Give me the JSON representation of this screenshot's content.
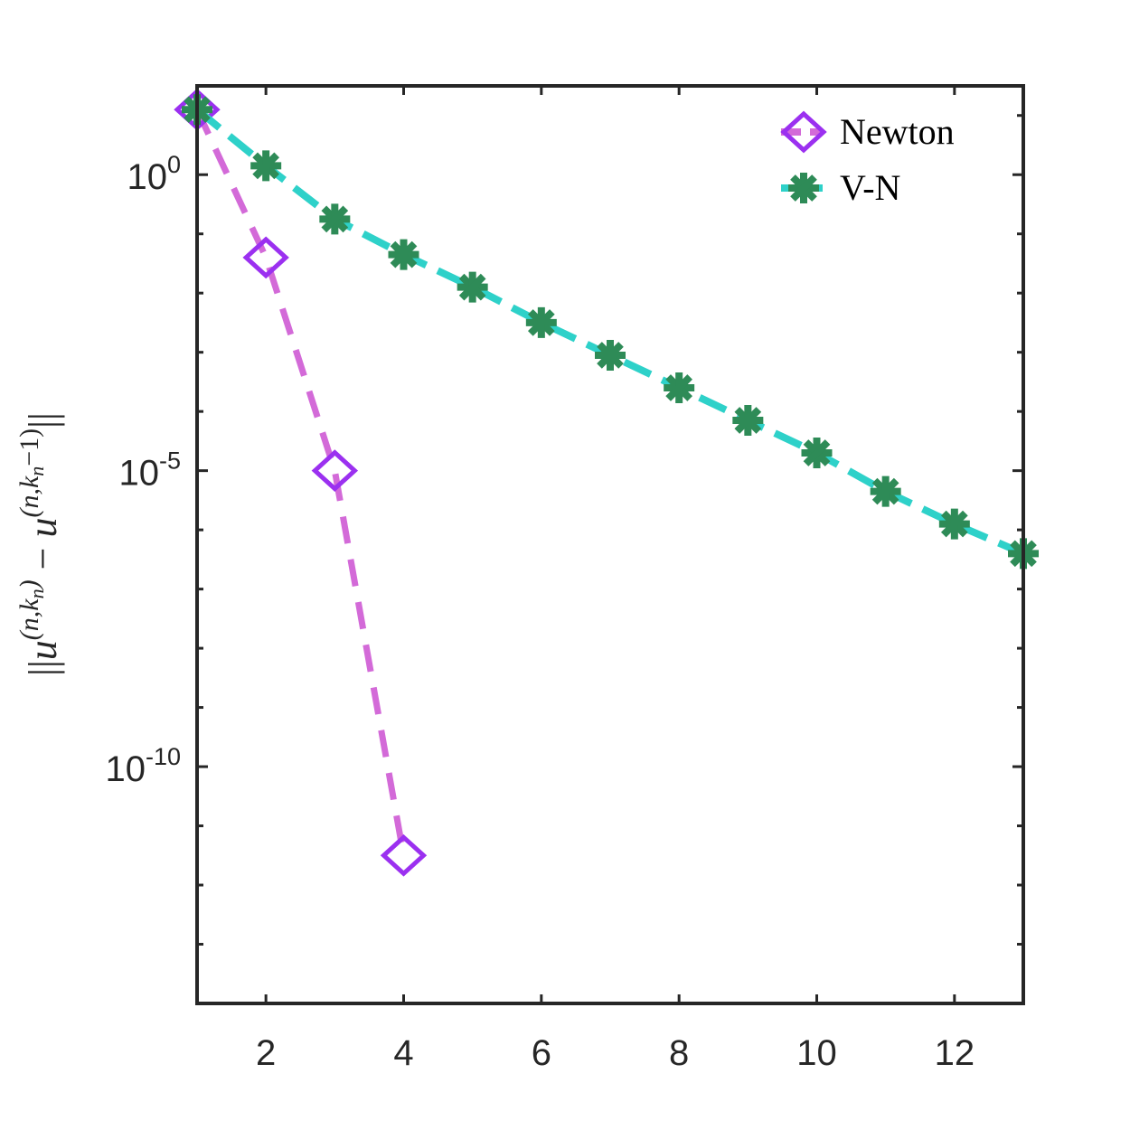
{
  "chart_data": {
    "type": "line",
    "title": "",
    "xlabel": "",
    "ylabel": "||u^(n,k_n) − u^(n,k_n−1)||",
    "yscale": "log",
    "xlim": [
      1,
      13
    ],
    "ylim_exp": [
      -14,
      1.5
    ],
    "xticks": [
      2,
      4,
      6,
      8,
      10,
      12
    ],
    "yticks": [
      {
        "exp": 0,
        "base": "10",
        "sup": "0"
      },
      {
        "exp": -5,
        "base": "10",
        "sup": "-5"
      },
      {
        "exp": -10,
        "base": "10",
        "sup": "-10"
      }
    ],
    "legend_position": "top-right",
    "series": [
      {
        "name": "Newton",
        "line_color": "#d36ad8",
        "marker_color": "#9b30f0",
        "marker": "diamond",
        "x": [
          1,
          2,
          3,
          4
        ],
        "log10_y": [
          1.1,
          -1.4,
          -5.0,
          -11.5
        ]
      },
      {
        "name": "V-N",
        "line_color": "#2ed1c9",
        "marker_color": "#2e8b57",
        "marker": "asterisk",
        "x": [
          1,
          2,
          3,
          4,
          5,
          6,
          7,
          8,
          9,
          10,
          11,
          12,
          13
        ],
        "log10_y": [
          1.1,
          0.15,
          -0.75,
          -1.35,
          -1.9,
          -2.5,
          -3.05,
          -3.6,
          -4.15,
          -4.7,
          -5.35,
          -5.9,
          -6.4
        ]
      }
    ]
  }
}
